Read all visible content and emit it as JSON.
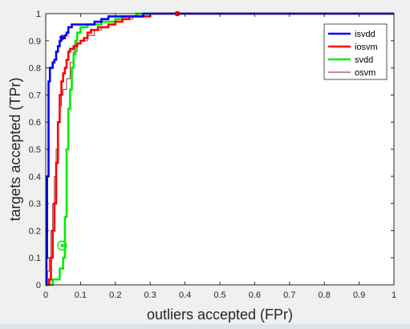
{
  "window": {
    "background": "#f0f0f0"
  },
  "chart_data": {
    "type": "line",
    "title": "",
    "xlabel": "outliers accepted (FPr)",
    "ylabel": "targets accepted (TPr)",
    "xlim": [
      0,
      1
    ],
    "ylim": [
      0,
      1
    ],
    "xticks": [
      "0",
      "0.1",
      "0.2",
      "0.3",
      "0.4",
      "0.5",
      "0.6",
      "0.7",
      "0.8",
      "0.9",
      "1"
    ],
    "yticks": [
      "0",
      "0.1",
      "0.2",
      "0.3",
      "0.4",
      "0.5",
      "0.6",
      "0.7",
      "0.8",
      "0.9",
      "1"
    ],
    "grid": false,
    "legend_position": "top-right",
    "series": [
      {
        "name": "isvdd",
        "color": "#0000ff",
        "line_width": "thick",
        "x": [
          0,
          0.002,
          0.004,
          0.008,
          0.012,
          0.015,
          0.02,
          0.025,
          0.03,
          0.035,
          0.04,
          0.045,
          0.05,
          0.055,
          0.06,
          0.065,
          0.07,
          0.075,
          0.08,
          0.09,
          0.1,
          0.12,
          0.14,
          0.16,
          0.18,
          0.2,
          0.22,
          0.25,
          0.28,
          0.3,
          0.35,
          0.38,
          0.5,
          1.0
        ],
        "y": [
          0,
          0.1,
          0.4,
          0.75,
          0.8,
          0.8,
          0.82,
          0.83,
          0.86,
          0.88,
          0.9,
          0.91,
          0.91,
          0.92,
          0.93,
          0.95,
          0.95,
          0.96,
          0.96,
          0.96,
          0.96,
          0.96,
          0.97,
          0.98,
          0.99,
          0.99,
          0.99,
          0.99,
          1.0,
          1.0,
          1.0,
          1.0,
          1.0,
          1.0
        ],
        "marker": {
          "x": 0.047,
          "y": 0.912
        }
      },
      {
        "name": "iosvm",
        "color": "#ff0000",
        "line_width": "thick",
        "x": [
          0,
          0.01,
          0.015,
          0.02,
          0.025,
          0.03,
          0.035,
          0.04,
          0.045,
          0.05,
          0.055,
          0.06,
          0.065,
          0.07,
          0.075,
          0.08,
          0.09,
          0.1,
          0.11,
          0.12,
          0.13,
          0.14,
          0.15,
          0.16,
          0.18,
          0.2,
          0.22,
          0.24,
          0.26,
          0.3,
          0.35,
          0.38,
          0.5,
          1.0
        ],
        "y": [
          0,
          0.02,
          0.1,
          0.2,
          0.3,
          0.45,
          0.6,
          0.7,
          0.75,
          0.78,
          0.8,
          0.83,
          0.86,
          0.87,
          0.87,
          0.88,
          0.89,
          0.9,
          0.91,
          0.93,
          0.94,
          0.94,
          0.95,
          0.95,
          0.96,
          0.97,
          0.98,
          0.99,
          0.99,
          1.0,
          1.0,
          1.0,
          1.0,
          1.0
        ],
        "marker": {
          "x": 0.378,
          "y": 1.0
        }
      },
      {
        "name": "svdd",
        "color": "#00ee00",
        "line_width": "thick",
        "x": [
          0,
          0.02,
          0.04,
          0.05,
          0.055,
          0.06,
          0.065,
          0.07,
          0.075,
          0.08,
          0.085,
          0.09,
          0.1,
          0.11,
          0.12,
          0.14,
          0.16,
          0.18,
          0.2,
          0.22,
          0.24,
          0.26,
          0.3,
          0.4,
          0.5,
          1.0
        ],
        "y": [
          0,
          0.02,
          0.06,
          0.1,
          0.25,
          0.5,
          0.65,
          0.72,
          0.8,
          0.85,
          0.9,
          0.93,
          0.95,
          0.95,
          0.96,
          0.96,
          0.97,
          0.97,
          0.98,
          0.99,
          0.99,
          1.0,
          1.0,
          1.0,
          1.0,
          1.0
        ],
        "marker": {
          "x": 0.047,
          "y": 0.145
        }
      },
      {
        "name": "osvm",
        "color": "#8b1a1a",
        "line_width": "thin",
        "x": [
          0,
          0.005,
          0.01,
          0.015,
          0.02,
          0.025,
          0.03,
          0.035,
          0.04,
          0.045,
          0.05,
          0.06,
          0.07,
          0.08,
          0.09,
          0.1,
          0.12,
          0.14,
          0.16,
          0.18,
          0.2,
          0.22,
          0.25,
          0.3,
          0.4,
          0.5,
          1.0
        ],
        "y": [
          0,
          0.05,
          0.1,
          0.2,
          0.3,
          0.4,
          0.5,
          0.6,
          0.66,
          0.7,
          0.72,
          0.76,
          0.82,
          0.86,
          0.89,
          0.9,
          0.92,
          0.94,
          0.95,
          0.96,
          0.97,
          0.98,
          0.99,
          1.0,
          1.0,
          1.0,
          1.0
        ]
      }
    ]
  }
}
